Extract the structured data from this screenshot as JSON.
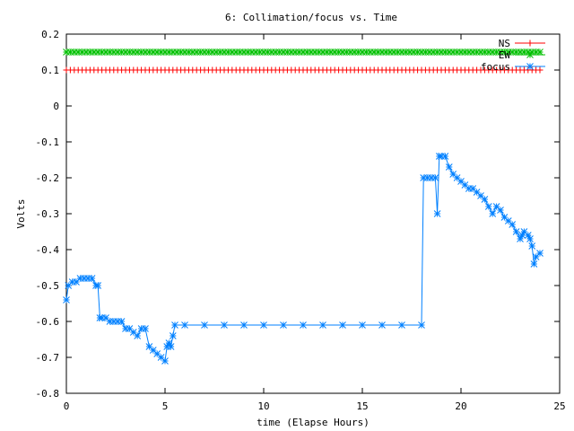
{
  "chart_data": {
    "type": "line",
    "title": "6: Collimation/focus vs. Time",
    "xlabel": "time (Elapse Hours)",
    "ylabel": "Volts",
    "xlim": [
      0,
      25
    ],
    "ylim": [
      -0.8,
      0.2
    ],
    "xticks": [
      0,
      5,
      10,
      15,
      20,
      25
    ],
    "yticks": [
      -0.8,
      -0.7,
      -0.6,
      -0.5,
      -0.4,
      -0.3,
      -0.2,
      -0.1,
      0,
      0.1,
      0.2
    ],
    "grid": false,
    "legend_position": "top-right",
    "series": [
      {
        "name": "NS",
        "color": "#ff0000",
        "marker": "plus",
        "x": [
          0,
          24
        ],
        "y": [
          0.1,
          0.1
        ]
      },
      {
        "name": "EW",
        "color": "#00c000",
        "marker": "star",
        "x": [
          0,
          24
        ],
        "y": [
          0.15,
          0.15
        ]
      },
      {
        "name": "focus",
        "color": "#0080ff",
        "marker": "star",
        "x": [
          0,
          0.1,
          0.3,
          0.5,
          0.7,
          0.9,
          1.1,
          1.3,
          1.5,
          1.6,
          1.7,
          1.8,
          2.0,
          2.2,
          2.4,
          2.6,
          2.8,
          3.0,
          3.2,
          3.4,
          3.6,
          3.8,
          4.0,
          4.2,
          4.4,
          4.6,
          4.8,
          5.0,
          5.1,
          5.2,
          5.3,
          5.4,
          5.5,
          6.0,
          7.0,
          8.0,
          9.0,
          10.0,
          11.0,
          12.0,
          13.0,
          14.0,
          15.0,
          16.0,
          17.0,
          18.0,
          18.1,
          18.3,
          18.5,
          18.7,
          18.8,
          18.9,
          19.0,
          19.2,
          19.4,
          19.6,
          19.8,
          20.0,
          20.2,
          20.4,
          20.6,
          20.8,
          21.0,
          21.2,
          21.4,
          21.6,
          21.8,
          22.0,
          22.2,
          22.4,
          22.6,
          22.8,
          23.0,
          23.1,
          23.2,
          23.4,
          23.5,
          23.6,
          23.7,
          23.8,
          24.0
        ],
        "y": [
          -0.54,
          -0.5,
          -0.49,
          -0.49,
          -0.48,
          -0.48,
          -0.48,
          -0.48,
          -0.5,
          -0.5,
          -0.59,
          -0.59,
          -0.59,
          -0.6,
          -0.6,
          -0.6,
          -0.6,
          -0.62,
          -0.62,
          -0.63,
          -0.64,
          -0.62,
          -0.62,
          -0.67,
          -0.68,
          -0.69,
          -0.7,
          -0.71,
          -0.67,
          -0.66,
          -0.67,
          -0.64,
          -0.61,
          -0.61,
          -0.61,
          -0.61,
          -0.61,
          -0.61,
          -0.61,
          -0.61,
          -0.61,
          -0.61,
          -0.61,
          -0.61,
          -0.61,
          -0.61,
          -0.2,
          -0.2,
          -0.2,
          -0.2,
          -0.3,
          -0.14,
          -0.14,
          -0.14,
          -0.17,
          -0.19,
          -0.2,
          -0.21,
          -0.22,
          -0.23,
          -0.23,
          -0.24,
          -0.25,
          -0.26,
          -0.28,
          -0.3,
          -0.28,
          -0.29,
          -0.31,
          -0.32,
          -0.33,
          -0.35,
          -0.37,
          -0.36,
          -0.35,
          -0.36,
          -0.37,
          -0.39,
          -0.44,
          -0.42,
          -0.41
        ]
      }
    ]
  }
}
